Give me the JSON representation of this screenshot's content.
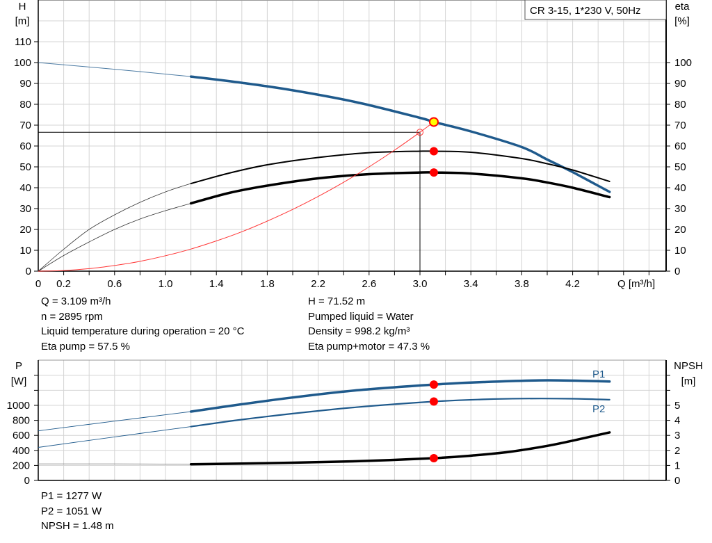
{
  "chart_data": [
    {
      "type": "line",
      "title": "CR 3-15, 1*230 V, 50Hz",
      "xlabel": "Q [m³/h]",
      "ylabel_left": [
        "H",
        "[m]"
      ],
      "ylabel_right": [
        "eta",
        "[%]"
      ],
      "xlim": [
        0,
        4.93
      ],
      "ylim_left": [
        0,
        130
      ],
      "ylim_right": [
        0,
        130
      ],
      "x_tick_labels": [
        "0",
        "0.2",
        "0.6",
        "1.0",
        "1.4",
        "1.8",
        "2.2",
        "2.6",
        "3.0",
        "3.4",
        "3.8",
        "4.2"
      ],
      "x_tick_values": [
        0,
        0.2,
        0.6,
        1.0,
        1.4,
        1.8,
        2.2,
        2.6,
        3.0,
        3.4,
        3.8,
        4.2
      ],
      "y_left_ticks": [
        0,
        10,
        20,
        30,
        40,
        50,
        60,
        70,
        80,
        90,
        100,
        110
      ],
      "y_right_ticks": [
        0,
        10,
        20,
        30,
        40,
        50,
        60,
        70,
        80,
        90,
        100
      ],
      "grid": true,
      "operating_range_start_q": 1.2,
      "series": [
        {
          "key": "H",
          "color": "#1f5a8c",
          "axis": "left",
          "x": [
            0,
            0.6,
            1.2,
            1.6,
            2.0,
            2.5,
            3.0,
            3.109,
            3.4,
            3.8,
            4.0,
            4.2,
            4.49
          ],
          "y": [
            100,
            96.8,
            93.3,
            90.3,
            86.7,
            81,
            73.5,
            71.52,
            67,
            59.5,
            53.5,
            47.5,
            38
          ]
        },
        {
          "key": "eta_pump",
          "color": "#000000",
          "axis": "right",
          "x": [
            0,
            0.2,
            0.4,
            0.6,
            0.8,
            1.0,
            1.2,
            1.5,
            1.8,
            2.2,
            2.6,
            3.0,
            3.109,
            3.4,
            3.8,
            4.0,
            4.2,
            4.49
          ],
          "y": [
            0,
            10.5,
            20,
            27,
            33,
            38,
            42,
            47,
            51,
            54.5,
            56.8,
            57.5,
            57.5,
            57,
            54,
            51.5,
            48.5,
            43
          ]
        },
        {
          "key": "eta_pump_motor",
          "color": "#000000",
          "axis": "right",
          "x": [
            0,
            0.2,
            0.4,
            0.6,
            0.8,
            1.0,
            1.2,
            1.5,
            1.8,
            2.2,
            2.6,
            3.0,
            3.109,
            3.4,
            3.8,
            4.0,
            4.2,
            4.49
          ],
          "y": [
            0,
            7.5,
            14,
            20,
            25,
            29,
            32.5,
            37.5,
            41,
            44.5,
            46.5,
            47.3,
            47.3,
            46.8,
            44.5,
            42.5,
            40,
            35.5
          ]
        },
        {
          "key": "system_curve",
          "color": "#ff3333",
          "axis": "left",
          "x": [
            0,
            0.2,
            0.4,
            0.6,
            0.8,
            1.0,
            1.2,
            1.4,
            1.6,
            1.8,
            2.0,
            2.2,
            2.4,
            2.6,
            2.8,
            3.0,
            3.109
          ],
          "y": [
            0,
            0.3,
            1.2,
            2.7,
            4.7,
            7.4,
            10.6,
            14.5,
            18.9,
            24,
            29.6,
            35.8,
            42.6,
            50,
            58,
            66.6,
            71.52
          ]
        }
      ],
      "operating_point": {
        "q": 3.109,
        "h": 71.52,
        "eta_pump": 57.5,
        "eta_pump_motor": 47.3
      },
      "reference_point": {
        "q": 3.0,
        "h": 66.6
      },
      "marker_colors": {
        "operating": "#ffff00",
        "operating_border": "#ff0000",
        "dot": "#ff0000"
      }
    },
    {
      "type": "line",
      "ylabel_left": [
        "P",
        "[W]"
      ],
      "ylabel_right": [
        "NPSH",
        "[m]"
      ],
      "xlim": [
        0,
        4.93
      ],
      "ylim_left": [
        0,
        1600
      ],
      "ylim_right": [
        0,
        8
      ],
      "y_left_ticks": [
        0,
        200,
        400,
        600,
        800,
        1000
      ],
      "y_right_ticks": [
        0,
        1,
        2,
        3,
        4,
        5
      ],
      "grid": true,
      "operating_range_start_q": 1.2,
      "series": [
        {
          "key": "P1",
          "name": "P1",
          "color": "#1f5a8c",
          "axis": "left",
          "x": [
            0,
            0.6,
            1.2,
            1.6,
            2.0,
            2.5,
            3.109,
            3.5,
            4.0,
            4.49
          ],
          "y": [
            660,
            790,
            917,
            1015,
            1105,
            1200,
            1277,
            1310,
            1333,
            1318
          ]
        },
        {
          "key": "P2",
          "name": "P2",
          "color": "#1f5a8c",
          "axis": "left",
          "x": [
            0,
            0.6,
            1.2,
            1.6,
            2.0,
            2.5,
            3.109,
            3.5,
            3.8,
            4.2,
            4.49
          ],
          "y": [
            440,
            580,
            717,
            810,
            890,
            975,
            1051,
            1080,
            1090,
            1088,
            1075
          ]
        },
        {
          "key": "NPSH",
          "color": "#000000",
          "axis": "right",
          "x": [
            0,
            0.6,
            1.2,
            1.6,
            2.0,
            2.5,
            3.109,
            3.4,
            3.7,
            4.0,
            4.2,
            4.49
          ],
          "y": [
            1.1,
            1.1,
            1.08,
            1.12,
            1.18,
            1.28,
            1.48,
            1.65,
            1.9,
            2.3,
            2.65,
            3.2
          ]
        }
      ],
      "operating_point": {
        "q": 3.109,
        "p1": 1277,
        "p2": 1051,
        "npsh": 1.48
      }
    }
  ],
  "info_top": {
    "left": [
      "Q = 3.109 m³/h",
      "n = 2895 rpm",
      "Liquid temperature during operation = 20 °C",
      "Eta pump = 57.5 %"
    ],
    "right": [
      "H = 71.52 m",
      "Pumped liquid = Water",
      "Density = 998.2 kg/m³",
      "Eta pump+motor = 47.3 %"
    ]
  },
  "info_bottom": [
    "P1 = 1277 W",
    "P2 = 1051 W",
    "NPSH = 1.48 m"
  ]
}
